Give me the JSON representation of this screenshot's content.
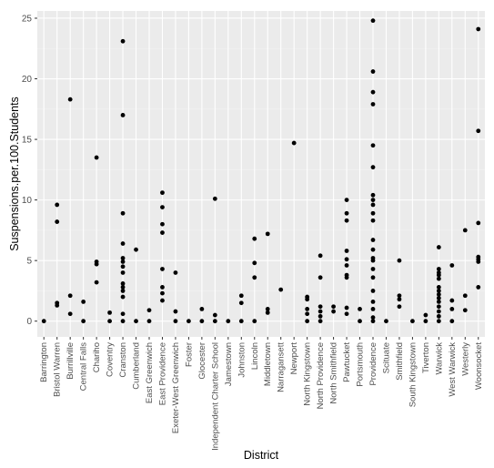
{
  "chart_data": {
    "type": "scatter",
    "title": "",
    "xlabel": "District",
    "ylabel": "Suspensions.per.100.Students",
    "ylim": [
      -1.3,
      25.6
    ],
    "y_ticks": [
      0,
      5,
      10,
      15,
      20,
      25
    ],
    "grid": true,
    "legend": "none",
    "categories": [
      "Barrington",
      "Bristol Warren",
      "Burrillville",
      "Central Falls",
      "Chariho",
      "Coventry",
      "Cranston",
      "Cumberland",
      "East Greenwich",
      "East Providence",
      "Exeter-West Greenwich",
      "Foster",
      "Glocester",
      "Independent Charter School",
      "Jamestown",
      "Johnston",
      "Lincoln",
      "Middletown",
      "Narragansett",
      "Newport",
      "North Kingstown",
      "North Providence",
      "North Smithfield",
      "Pawtucket",
      "Portsmouth",
      "Providence",
      "Scituate",
      "Smithfield",
      "South Kingstown",
      "Tiverton",
      "Warwick",
      "West Warwick",
      "Westerly",
      "Woonsocket"
    ],
    "points": [
      {
        "x": "Barrington",
        "y": 0
      },
      {
        "x": "Bristol Warren",
        "y": 9.6
      },
      {
        "x": "Bristol Warren",
        "y": 8.2
      },
      {
        "x": "Bristol Warren",
        "y": 1.5
      },
      {
        "x": "Bristol Warren",
        "y": 1.3
      },
      {
        "x": "Burrillville",
        "y": 18.3
      },
      {
        "x": "Burrillville",
        "y": 2.1
      },
      {
        "x": "Burrillville",
        "y": 0.6
      },
      {
        "x": "Central Falls",
        "y": 1.6
      },
      {
        "x": "Central Falls",
        "y": 0
      },
      {
        "x": "Chariho",
        "y": 13.5
      },
      {
        "x": "Chariho",
        "y": 4.9
      },
      {
        "x": "Chariho",
        "y": 4.7
      },
      {
        "x": "Chariho",
        "y": 3.2
      },
      {
        "x": "Coventry",
        "y": 0.7
      },
      {
        "x": "Coventry",
        "y": 0
      },
      {
        "x": "Cranston",
        "y": 23.1
      },
      {
        "x": "Cranston",
        "y": 17
      },
      {
        "x": "Cranston",
        "y": 8.9
      },
      {
        "x": "Cranston",
        "y": 6.4
      },
      {
        "x": "Cranston",
        "y": 5.2
      },
      {
        "x": "Cranston",
        "y": 4.9
      },
      {
        "x": "Cranston",
        "y": 4.5
      },
      {
        "x": "Cranston",
        "y": 4
      },
      {
        "x": "Cranston",
        "y": 3.1
      },
      {
        "x": "Cranston",
        "y": 2.8
      },
      {
        "x": "Cranston",
        "y": 2.5
      },
      {
        "x": "Cranston",
        "y": 2
      },
      {
        "x": "Cranston",
        "y": 0.6
      },
      {
        "x": "Cranston",
        "y": 0
      },
      {
        "x": "Cumberland",
        "y": 5.9
      },
      {
        "x": "Cumberland",
        "y": 0
      },
      {
        "x": "East Greenwich",
        "y": 0.9
      },
      {
        "x": "East Greenwich",
        "y": 0
      },
      {
        "x": "East Providence",
        "y": 10.6
      },
      {
        "x": "East Providence",
        "y": 9.4
      },
      {
        "x": "East Providence",
        "y": 8
      },
      {
        "x": "East Providence",
        "y": 7.3
      },
      {
        "x": "East Providence",
        "y": 4.3
      },
      {
        "x": "East Providence",
        "y": 2.8
      },
      {
        "x": "East Providence",
        "y": 2.3
      },
      {
        "x": "East Providence",
        "y": 1.7
      },
      {
        "x": "Exeter-West Greenwich",
        "y": 4
      },
      {
        "x": "Exeter-West Greenwich",
        "y": 0.8
      },
      {
        "x": "Exeter-West Greenwich",
        "y": 0
      },
      {
        "x": "Foster",
        "y": 0
      },
      {
        "x": "Glocester",
        "y": 1
      },
      {
        "x": "Glocester",
        "y": 0
      },
      {
        "x": "Independent Charter School",
        "y": 10.1
      },
      {
        "x": "Independent Charter School",
        "y": 0.5
      },
      {
        "x": "Independent Charter School",
        "y": 0
      },
      {
        "x": "Jamestown",
        "y": 0
      },
      {
        "x": "Johnston",
        "y": 2.1
      },
      {
        "x": "Johnston",
        "y": 1.5
      },
      {
        "x": "Johnston",
        "y": 0
      },
      {
        "x": "Lincoln",
        "y": 6.8
      },
      {
        "x": "Lincoln",
        "y": 4.8
      },
      {
        "x": "Lincoln",
        "y": 3.6
      },
      {
        "x": "Lincoln",
        "y": 0
      },
      {
        "x": "Middletown",
        "y": 7.2
      },
      {
        "x": "Middletown",
        "y": 1
      },
      {
        "x": "Middletown",
        "y": 0.7
      },
      {
        "x": "Narragansett",
        "y": 2.6
      },
      {
        "x": "Newport",
        "y": 14.7
      },
      {
        "x": "North Kingstown",
        "y": 2
      },
      {
        "x": "North Kingstown",
        "y": 1.8
      },
      {
        "x": "North Kingstown",
        "y": 1
      },
      {
        "x": "North Kingstown",
        "y": 0.6
      },
      {
        "x": "North Kingstown",
        "y": 0
      },
      {
        "x": "North Providence",
        "y": 5.4
      },
      {
        "x": "North Providence",
        "y": 3.6
      },
      {
        "x": "North Providence",
        "y": 1.2
      },
      {
        "x": "North Providence",
        "y": 0.8
      },
      {
        "x": "North Providence",
        "y": 0.4
      },
      {
        "x": "North Providence",
        "y": 0
      },
      {
        "x": "North Smithfield",
        "y": 1.2
      },
      {
        "x": "North Smithfield",
        "y": 0.8
      },
      {
        "x": "Pawtucket",
        "y": 10
      },
      {
        "x": "Pawtucket",
        "y": 8.9
      },
      {
        "x": "Pawtucket",
        "y": 8.3
      },
      {
        "x": "Pawtucket",
        "y": 5.8
      },
      {
        "x": "Pawtucket",
        "y": 5.1
      },
      {
        "x": "Pawtucket",
        "y": 4.6
      },
      {
        "x": "Pawtucket",
        "y": 3.8
      },
      {
        "x": "Pawtucket",
        "y": 3.6
      },
      {
        "x": "Pawtucket",
        "y": 1.1
      },
      {
        "x": "Pawtucket",
        "y": 0.6
      },
      {
        "x": "Portsmouth",
        "y": 1
      },
      {
        "x": "Portsmouth",
        "y": 0
      },
      {
        "x": "Providence",
        "y": 24.8
      },
      {
        "x": "Providence",
        "y": 20.6
      },
      {
        "x": "Providence",
        "y": 18.9
      },
      {
        "x": "Providence",
        "y": 17.9
      },
      {
        "x": "Providence",
        "y": 14.5
      },
      {
        "x": "Providence",
        "y": 12.7
      },
      {
        "x": "Providence",
        "y": 10.4
      },
      {
        "x": "Providence",
        "y": 10
      },
      {
        "x": "Providence",
        "y": 9.6
      },
      {
        "x": "Providence",
        "y": 8.9
      },
      {
        "x": "Providence",
        "y": 8.3
      },
      {
        "x": "Providence",
        "y": 6.7
      },
      {
        "x": "Providence",
        "y": 5.9
      },
      {
        "x": "Providence",
        "y": 5.2
      },
      {
        "x": "Providence",
        "y": 5
      },
      {
        "x": "Providence",
        "y": 4.3
      },
      {
        "x": "Providence",
        "y": 3.6
      },
      {
        "x": "Providence",
        "y": 2.5
      },
      {
        "x": "Providence",
        "y": 1.6
      },
      {
        "x": "Providence",
        "y": 1
      },
      {
        "x": "Providence",
        "y": 0.3
      },
      {
        "x": "Providence",
        "y": 0
      },
      {
        "x": "Scituate",
        "y": 0
      },
      {
        "x": "Smithfield",
        "y": 5
      },
      {
        "x": "Smithfield",
        "y": 2.1
      },
      {
        "x": "Smithfield",
        "y": 1.8
      },
      {
        "x": "Smithfield",
        "y": 1.2
      },
      {
        "x": "South Kingstown",
        "y": 0
      },
      {
        "x": "Tiverton",
        "y": 0.5
      },
      {
        "x": "Tiverton",
        "y": 0
      },
      {
        "x": "Warwick",
        "y": 6.1
      },
      {
        "x": "Warwick",
        "y": 4.3
      },
      {
        "x": "Warwick",
        "y": 4
      },
      {
        "x": "Warwick",
        "y": 3.8
      },
      {
        "x": "Warwick",
        "y": 3.5
      },
      {
        "x": "Warwick",
        "y": 2.8
      },
      {
        "x": "Warwick",
        "y": 2.5
      },
      {
        "x": "Warwick",
        "y": 2.2
      },
      {
        "x": "Warwick",
        "y": 1.9
      },
      {
        "x": "Warwick",
        "y": 1.6
      },
      {
        "x": "Warwick",
        "y": 1.2
      },
      {
        "x": "Warwick",
        "y": 0.8
      },
      {
        "x": "Warwick",
        "y": 0.4
      },
      {
        "x": "Warwick",
        "y": 0
      },
      {
        "x": "West Warwick",
        "y": 4.6
      },
      {
        "x": "West Warwick",
        "y": 1.7
      },
      {
        "x": "West Warwick",
        "y": 1
      },
      {
        "x": "West Warwick",
        "y": 0
      },
      {
        "x": "Westerly",
        "y": 7.5
      },
      {
        "x": "Westerly",
        "y": 2.1
      },
      {
        "x": "Westerly",
        "y": 0.9
      },
      {
        "x": "Woonsocket",
        "y": 24.1
      },
      {
        "x": "Woonsocket",
        "y": 15.7
      },
      {
        "x": "Woonsocket",
        "y": 8.1
      },
      {
        "x": "Woonsocket",
        "y": 5.3
      },
      {
        "x": "Woonsocket",
        "y": 5.1
      },
      {
        "x": "Woonsocket",
        "y": 4.9
      },
      {
        "x": "Woonsocket",
        "y": 2.8
      }
    ]
  },
  "colors": {
    "panel": "#ebebeb",
    "grid_major": "#ffffff",
    "grid_minor": "#f3f3f3",
    "point": "#000000",
    "tick_text": "#4d4d4d",
    "axis_title": "#000000"
  }
}
